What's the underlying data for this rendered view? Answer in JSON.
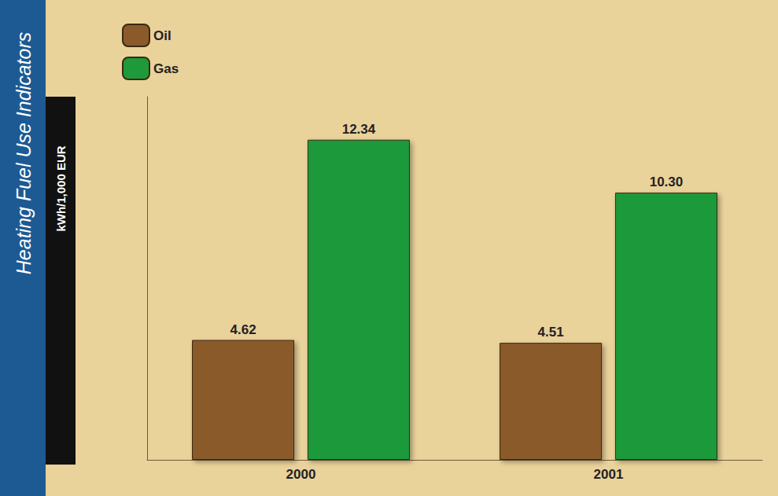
{
  "chart_data": {
    "type": "bar",
    "title": "Heating Fuel Use Indicators",
    "y_label": "kWh/1,000 EUR",
    "categories": [
      "2000",
      "2001"
    ],
    "series": [
      {
        "name": "Oil",
        "color": "#8b5a2b",
        "values": [
          4.62,
          4.51
        ]
      },
      {
        "name": "Gas",
        "color": "#1e9a3a",
        "values": [
          12.34,
          10.3
        ],
        "value_labels": [
          "12.34",
          "10.30"
        ]
      }
    ],
    "ylim": [
      0,
      14
    ],
    "tick_labels": "x",
    "grid": false,
    "legend": "top-left",
    "data_labels": true
  }
}
